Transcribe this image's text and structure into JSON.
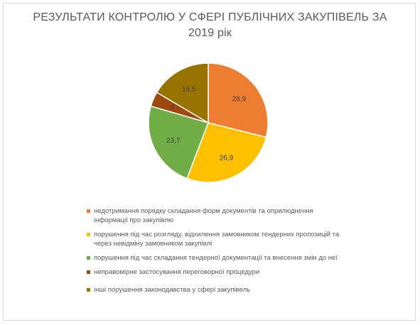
{
  "chart_data": {
    "type": "pie",
    "title": "РЕЗУЛЬТАТИ КОНТРОЛЮ У СФЕРІ ПУБЛІЧНИХ ЗАКУПІВЕЛЬ ЗА 2019 рік",
    "title_lines": [
      "РЕЗУЛЬТАТИ КОНТРОЛЮ У СФЕРІ ПУБЛІЧНИХ ЗАКУПІВЕЛЬ ЗА",
      "2019 рік"
    ],
    "slices": [
      {
        "label": "недотримання порядку складання форм документів та оприлюднення інформації про закупівлю",
        "value": 28.9,
        "value_label": "28,9",
        "color": "#ed7d31"
      },
      {
        "label": "порушення під час розгляду, відхилення замовником тендерних пропозицій та через невідміну замовником закупівлі",
        "value": 26.9,
        "value_label": "26,9",
        "color": "#ffc000"
      },
      {
        "label": "порушення під час складання тендерної документації та внесення змін до неї",
        "value": 23.7,
        "value_label": "23,7",
        "color": "#70ad47"
      },
      {
        "label": "неправомірне застосування переговорної процедури",
        "value": 4,
        "value_label": "4",
        "color": "#9e480e"
      },
      {
        "label": "інші порушення законодавства у сфері закупівель",
        "value": 16.5,
        "value_label": "16,5",
        "color": "#997300"
      }
    ],
    "legend_position": "bottom"
  }
}
